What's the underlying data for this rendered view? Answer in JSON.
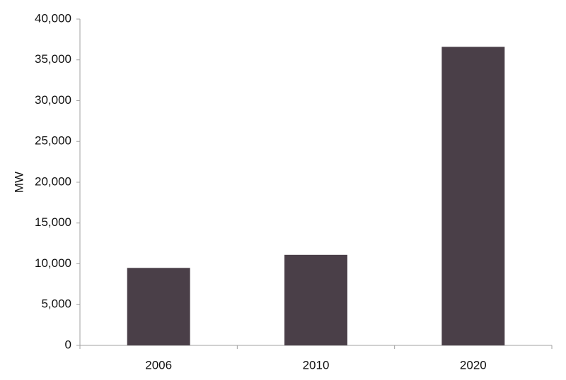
{
  "chart_data": {
    "type": "bar",
    "y_label": "MW",
    "categories": [
      "2006",
      "2010",
      "2020"
    ],
    "values": [
      9500,
      11100,
      36600
    ],
    "color": "#4a3f48",
    "ylim": [
      0,
      40000
    ],
    "yticks": [
      0,
      {
        "value": 5000,
        "label": "5,000"
      },
      {
        "value": 10000,
        "label": "10,000"
      },
      {
        "value": 15000,
        "label": "15,000"
      },
      {
        "value": 20000,
        "label": "20,000"
      },
      {
        "value": 25000,
        "label": "25,000"
      },
      {
        "value": 30000,
        "label": "30,000"
      },
      {
        "value": 35000,
        "label": "35,000"
      },
      {
        "value": 40000,
        "label": "40,000"
      }
    ],
    "grid": false
  }
}
